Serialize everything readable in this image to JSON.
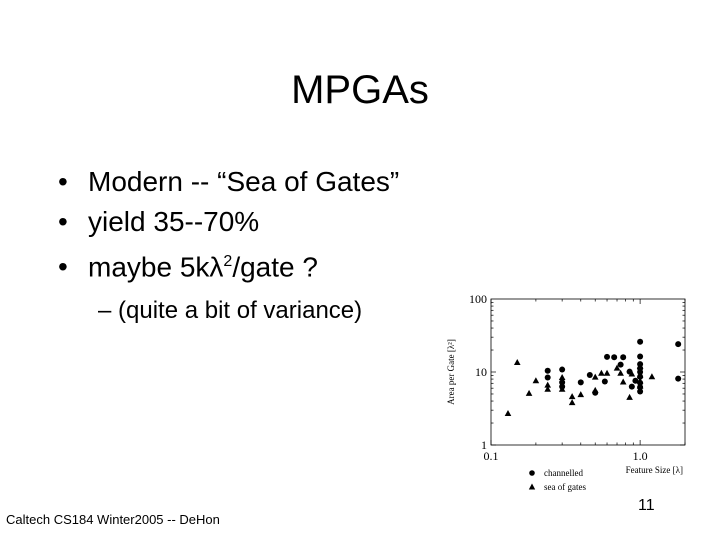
{
  "slide": {
    "title": "MPGAs",
    "bullets": [
      "Modern -- “Sea of Gates”",
      "yield 35--70%",
      "maybe 5kλ²/gate ?"
    ],
    "bullet_parts": {
      "b3_pre": "maybe 5kλ",
      "b3_sup": "2",
      "b3_post": "/gate ?"
    },
    "sub_bullet": "– (quite a bit of variance)",
    "footer": "Caltech CS184 Winter2005 -- DeHon",
    "page_number": "11"
  },
  "chart_data": {
    "type": "scatter",
    "xlabel": "Feature Size [λ]",
    "ylabel": "Area per Gate [λ²]",
    "xscale": "log",
    "yscale": "log",
    "xlim": [
      0.1,
      2.0
    ],
    "ylim": [
      1,
      100
    ],
    "x_ticks": [
      "0.1",
      "1.0"
    ],
    "y_ticks": [
      "100",
      "10",
      "1"
    ],
    "legend_position": "bottom",
    "series": [
      {
        "name": "channelled",
        "marker": "circle",
        "points": [
          [
            0.24,
            10.4
          ],
          [
            0.24,
            8.4
          ],
          [
            0.3,
            10.8
          ],
          [
            0.3,
            7.2
          ],
          [
            0.3,
            6.3
          ],
          [
            0.4,
            7.2
          ],
          [
            0.46,
            9.1
          ],
          [
            0.58,
            7.4
          ],
          [
            0.5,
            5.2
          ],
          [
            0.6,
            16.1
          ],
          [
            0.67,
            15.9
          ],
          [
            0.77,
            15.9
          ],
          [
            0.74,
            12.6
          ],
          [
            0.85,
            10.1
          ],
          [
            0.88,
            6.3
          ],
          [
            0.93,
            7.6
          ],
          [
            1.0,
            26.0
          ],
          [
            1.0,
            16.3
          ],
          [
            1.0,
            12.8
          ],
          [
            1.0,
            11.2
          ],
          [
            1.0,
            10.0
          ],
          [
            1.0,
            8.6
          ],
          [
            1.0,
            7.1
          ],
          [
            1.0,
            6.2
          ],
          [
            1.0,
            5.4
          ],
          [
            1.8,
            24.1
          ],
          [
            1.8,
            8.1
          ]
        ]
      },
      {
        "name": "sea of gates",
        "marker": "triangle",
        "points": [
          [
            0.13,
            2.7
          ],
          [
            0.15,
            13.5
          ],
          [
            0.18,
            5.1
          ],
          [
            0.2,
            7.6
          ],
          [
            0.24,
            6.6
          ],
          [
            0.24,
            5.8
          ],
          [
            0.3,
            8.4
          ],
          [
            0.3,
            5.8
          ],
          [
            0.35,
            4.6
          ],
          [
            0.35,
            3.8
          ],
          [
            0.4,
            4.9
          ],
          [
            0.5,
            8.5
          ],
          [
            0.5,
            5.6
          ],
          [
            0.55,
            9.6
          ],
          [
            0.6,
            9.6
          ],
          [
            0.7,
            11.3
          ],
          [
            0.74,
            9.6
          ],
          [
            0.77,
            7.3
          ],
          [
            0.85,
            4.5
          ],
          [
            0.88,
            9.4
          ],
          [
            1.0,
            12.0
          ],
          [
            1.0,
            9.0
          ],
          [
            1.0,
            7.5
          ],
          [
            1.0,
            6.4
          ],
          [
            1.2,
            8.6
          ]
        ]
      }
    ]
  }
}
